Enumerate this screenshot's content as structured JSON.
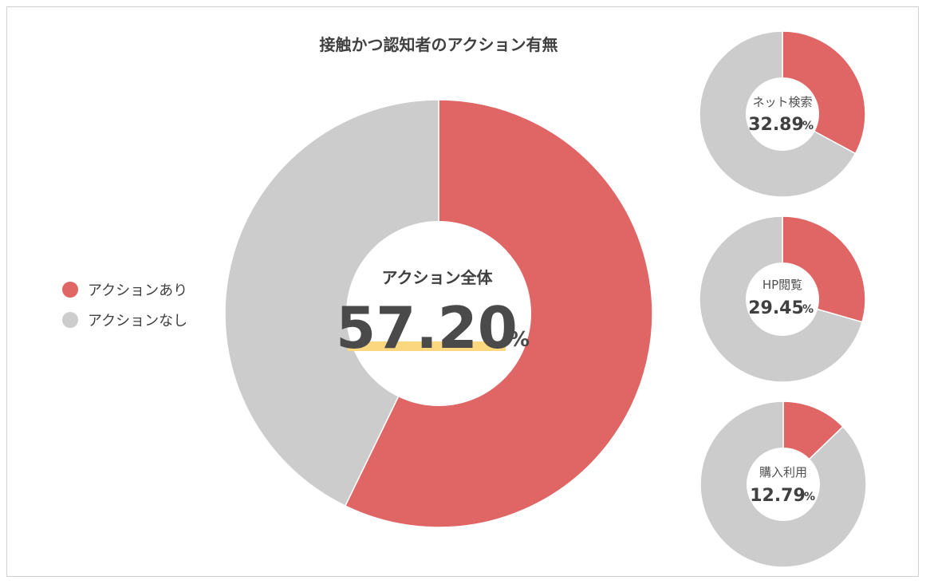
{
  "chart_data": [
    {
      "type": "pie",
      "title": "接触かつ認知者のアクション有無",
      "center_label": "アクション全体",
      "center_value": "57.20",
      "center_unit": "%",
      "categories": [
        "アクションあり",
        "アクションなし"
      ],
      "values": [
        57.2,
        42.8
      ],
      "colors": [
        "#e06666",
        "#cccccc"
      ],
      "legend_position": "left"
    },
    {
      "type": "pie",
      "center_label": "ネット検索",
      "center_value": "32.89",
      "center_unit": "%",
      "categories": [
        "アクションあり",
        "アクションなし"
      ],
      "values": [
        32.89,
        67.11
      ],
      "colors": [
        "#e06666",
        "#cccccc"
      ]
    },
    {
      "type": "pie",
      "center_label": "HP閲覧",
      "center_value": "29.45",
      "center_unit": "%",
      "categories": [
        "アクションあり",
        "アクションなし"
      ],
      "values": [
        29.45,
        70.55
      ],
      "colors": [
        "#e06666",
        "#cccccc"
      ]
    },
    {
      "type": "pie",
      "center_label": "購入利用",
      "center_value": "12.79",
      "center_unit": "%",
      "categories": [
        "アクションあり",
        "アクションなし"
      ],
      "values": [
        12.79,
        87.21
      ],
      "colors": [
        "#e06666",
        "#cccccc"
      ]
    }
  ],
  "legend": {
    "items": [
      {
        "label": "アクションあり",
        "color": "#e06666"
      },
      {
        "label": "アクションなし",
        "color": "#cccccc"
      }
    ]
  },
  "highlight_color": "#fbd880"
}
